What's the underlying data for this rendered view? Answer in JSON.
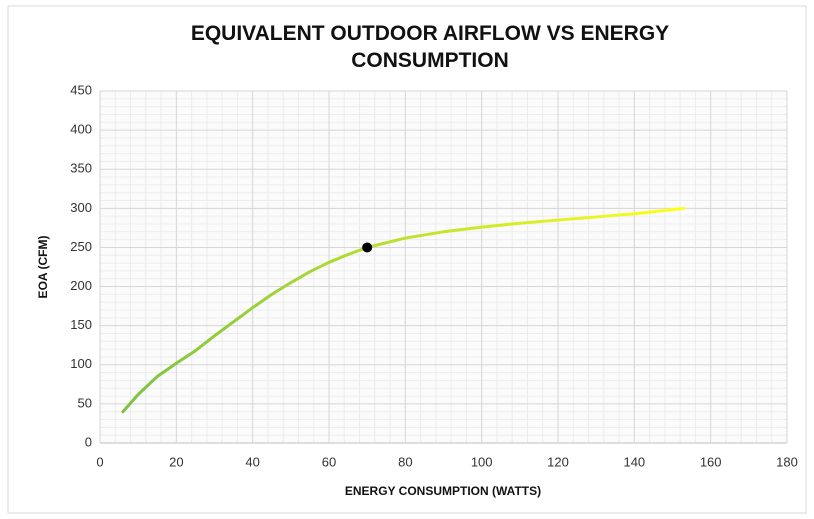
{
  "chart_data": {
    "type": "line",
    "title": "EQUIVALENT OUTDOOR AIRFLOW VS ENERGY CONSUMPTION",
    "xlabel": "ENERGY CONSUMPTION (WATTS)",
    "ylabel": "EOA (CFM)",
    "series": [
      {
        "x": [
          6,
          10,
          15,
          20,
          25,
          30,
          35,
          40,
          45,
          50,
          55,
          60,
          65,
          70,
          80,
          90,
          100,
          110,
          120,
          130,
          140,
          153
        ],
        "values": [
          40,
          62,
          85,
          102,
          118,
          137,
          155,
          173,
          190,
          205,
          219,
          231,
          241,
          250,
          262,
          270,
          276,
          281,
          285,
          289,
          293,
          300
        ],
        "color": [
          "#7cc242",
          "#ffff1a"
        ]
      }
    ],
    "highlight": {
      "x": 70,
      "y": 250,
      "color": "#000000"
    },
    "xlim": [
      0,
      180
    ],
    "xticks": [
      0,
      20,
      40,
      60,
      80,
      100,
      120,
      140,
      160,
      180
    ],
    "ylim": [
      0,
      450
    ],
    "yticks": [
      0,
      50,
      100,
      150,
      200,
      250,
      300,
      350,
      400,
      450
    ],
    "grid": true,
    "minor_grid": true
  }
}
